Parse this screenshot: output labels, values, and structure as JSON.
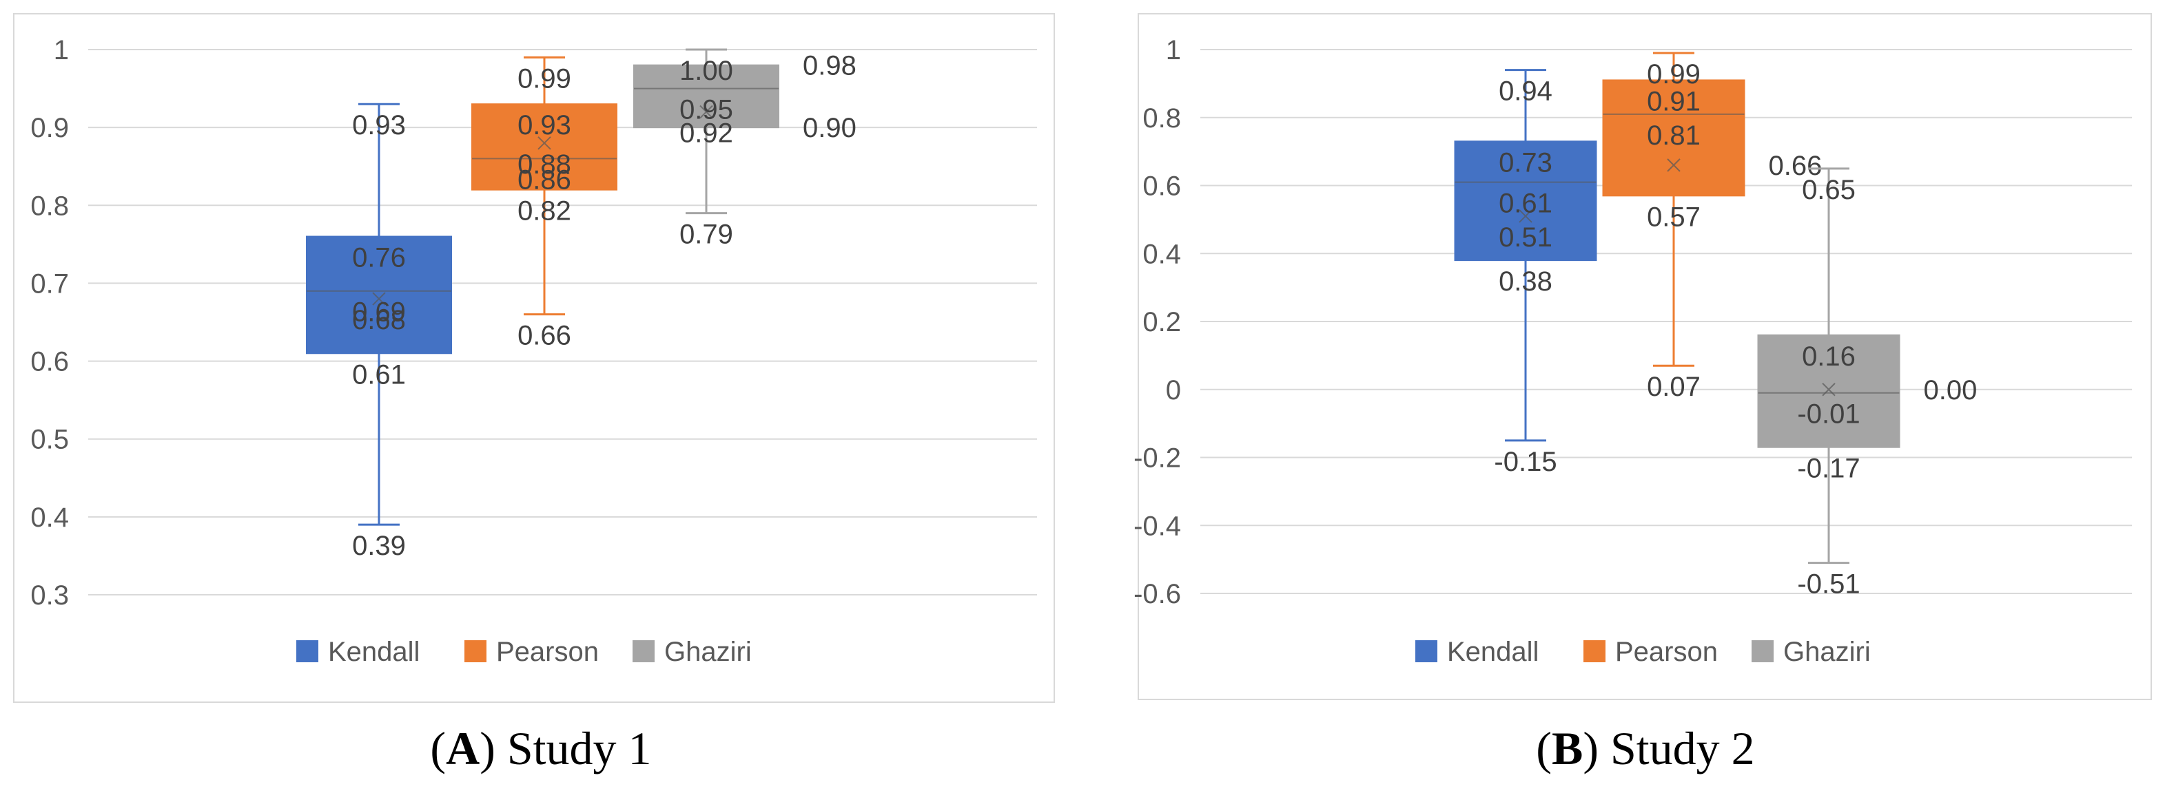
{
  "colors": {
    "Kendall": "#4472C4",
    "Pearson": "#ED7D31",
    "Ghaziri": "#A5A5A5",
    "grid": "#D9D9D9",
    "frame": "#D9D9D9"
  },
  "captions": [
    {
      "letter": "A",
      "text": " Study 1"
    },
    {
      "letter": "B",
      "text": " Study 2"
    }
  ],
  "chart_data": [
    {
      "type": "box",
      "ylim": [
        0.3,
        1
      ],
      "ystep": 0.1,
      "yticks": [
        "0.3",
        "0.4",
        "0.5",
        "0.6",
        "0.7",
        "0.8",
        "0.9",
        "1"
      ],
      "grid": true,
      "legend_placement": "bottom",
      "series": [
        {
          "name": "Kendall",
          "min": 0.39,
          "q1": 0.61,
          "median": 0.69,
          "mean": 0.68,
          "q3": 0.76,
          "max": 0.93,
          "labels": [
            {
              "text": "0.93",
              "v": 0.93,
              "side": "below"
            },
            {
              "text": "0.76",
              "v": 0.76,
              "side": "below"
            },
            {
              "text": "0.69",
              "v": 0.69,
              "side": "below"
            },
            {
              "text": "0.68",
              "v": 0.68,
              "side": "below"
            },
            {
              "text": "0.61",
              "v": 0.61,
              "side": "below"
            },
            {
              "text": "0.39",
              "v": 0.39,
              "side": "below"
            }
          ]
        },
        {
          "name": "Pearson",
          "min": 0.66,
          "q1": 0.82,
          "median": 0.86,
          "mean": 0.88,
          "q3": 0.93,
          "max": 0.99,
          "labels": [
            {
              "text": "0.99",
              "v": 0.99,
              "side": "below"
            },
            {
              "text": "0.93",
              "v": 0.93,
              "side": "below"
            },
            {
              "text": "0.88",
              "v": 0.88,
              "side": "below"
            },
            {
              "text": "0.86",
              "v": 0.86,
              "side": "below"
            },
            {
              "text": "0.82",
              "v": 0.82,
              "side": "below"
            },
            {
              "text": "0.66",
              "v": 0.66,
              "side": "below"
            }
          ]
        },
        {
          "name": "Ghaziri",
          "min": 0.79,
          "q1": 0.9,
          "median": 0.95,
          "mean": 0.92,
          "q3": 0.98,
          "max": 1.0,
          "labels": [
            {
              "text": "1.00",
              "v": 1.0,
              "side": "below"
            },
            {
              "text": "0.98",
              "v": 0.98,
              "side": "right"
            },
            {
              "text": "0.95",
              "v": 0.95,
              "side": "below"
            },
            {
              "text": "0.92",
              "v": 0.92,
              "side": "below"
            },
            {
              "text": "0.90",
              "v": 0.9,
              "side": "right"
            },
            {
              "text": "0.79",
              "v": 0.79,
              "side": "below"
            }
          ]
        }
      ]
    },
    {
      "type": "box",
      "ylim": [
        -0.6,
        1
      ],
      "ystep": 0.2,
      "yticks": [
        "-0.6",
        "-0.4",
        "-0.2",
        "0",
        "0.2",
        "0.4",
        "0.6",
        "0.8",
        "1"
      ],
      "grid": true,
      "legend_placement": "bottom",
      "series": [
        {
          "name": "Kendall",
          "min": -0.15,
          "q1": 0.38,
          "median": 0.61,
          "mean": 0.51,
          "q3": 0.73,
          "max": 0.94,
          "labels": [
            {
              "text": "0.94",
              "v": 0.94,
              "side": "below"
            },
            {
              "text": "0.73",
              "v": 0.73,
              "side": "below"
            },
            {
              "text": "0.61",
              "v": 0.61,
              "side": "below"
            },
            {
              "text": "0.51",
              "v": 0.51,
              "side": "below"
            },
            {
              "text": "0.38",
              "v": 0.38,
              "side": "below"
            },
            {
              "text": "-0.15",
              "v": -0.15,
              "side": "below"
            }
          ]
        },
        {
          "name": "Pearson",
          "min": 0.07,
          "q1": 0.57,
          "median": 0.81,
          "mean": 0.66,
          "q3": 0.91,
          "max": 0.99,
          "labels": [
            {
              "text": "0.99",
              "v": 0.99,
              "side": "below"
            },
            {
              "text": "0.91",
              "v": 0.91,
              "side": "below"
            },
            {
              "text": "0.81",
              "v": 0.81,
              "side": "below"
            },
            {
              "text": "0.66",
              "v": 0.66,
              "side": "right"
            },
            {
              "text": "0.57",
              "v": 0.57,
              "side": "below"
            },
            {
              "text": "0.07",
              "v": 0.07,
              "side": "below"
            }
          ]
        },
        {
          "name": "Ghaziri",
          "min": -0.51,
          "q1": -0.17,
          "median": -0.01,
          "mean": 0.0,
          "q3": 0.16,
          "max": 0.65,
          "labels": [
            {
              "text": "0.65",
              "v": 0.65,
              "side": "below"
            },
            {
              "text": "0.16",
              "v": 0.16,
              "side": "below"
            },
            {
              "text": "0.00",
              "v": 0.0,
              "side": "right"
            },
            {
              "text": "-0.01",
              "v": -0.01,
              "side": "below"
            },
            {
              "text": "-0.17",
              "v": -0.17,
              "side": "below"
            },
            {
              "text": "-0.51",
              "v": -0.51,
              "side": "below"
            }
          ]
        }
      ]
    }
  ]
}
